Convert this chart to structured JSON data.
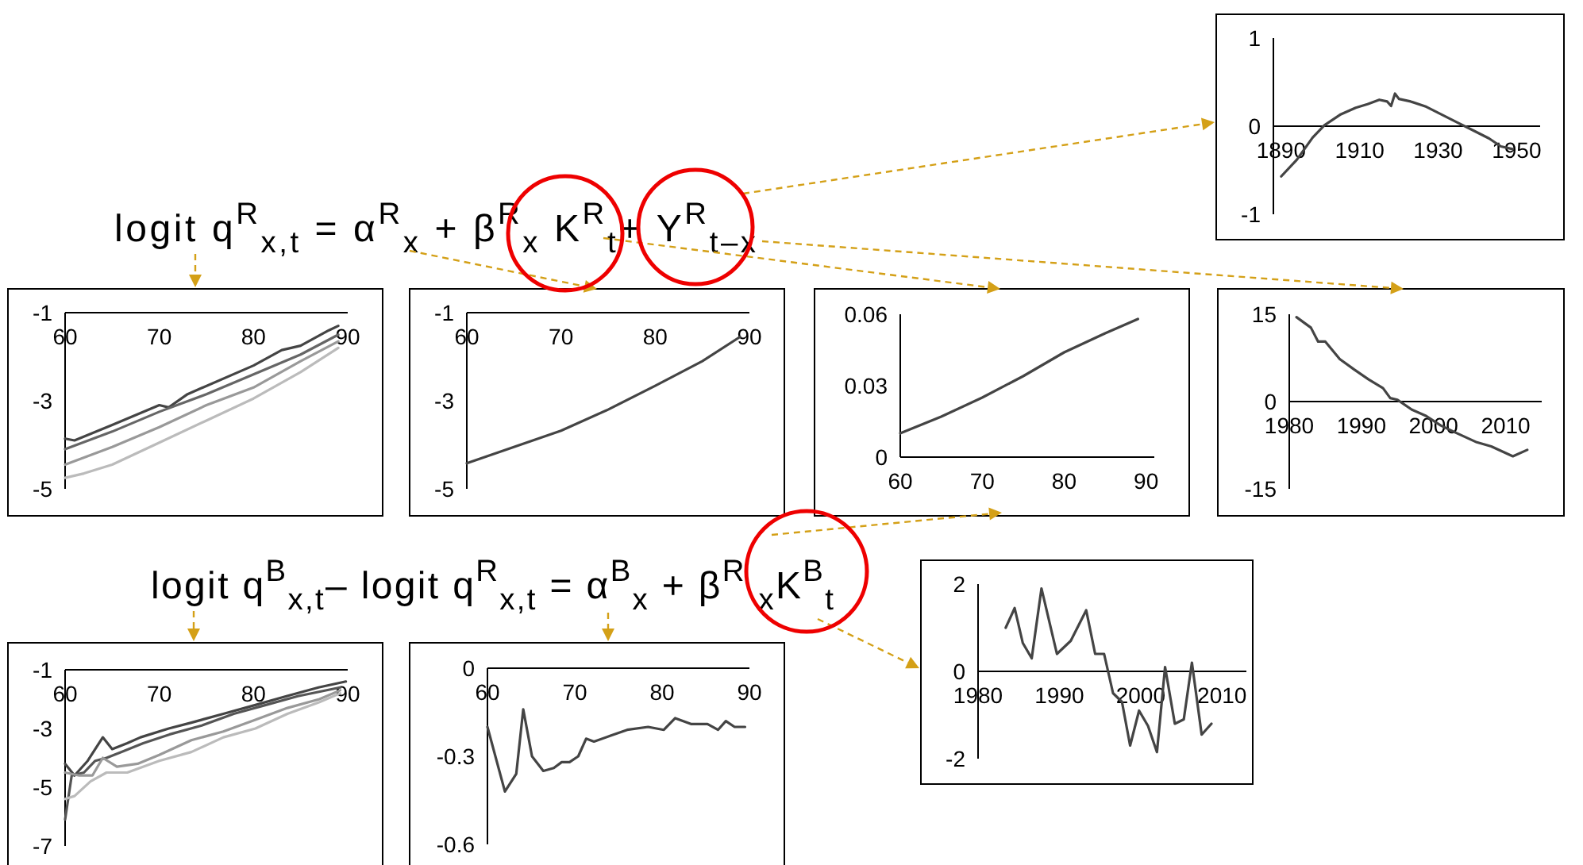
{
  "chart_data": [
    {
      "type": "line",
      "xlim": [
        1888,
        1956
      ],
      "ylim": [
        -1,
        1
      ],
      "xticks": [
        1890,
        1910,
        1930,
        1950
      ],
      "yticks": [
        1,
        0,
        -1
      ],
      "grid": false,
      "series": [
        {
          "color": "#444444",
          "x": [
            1890,
            1894,
            1898,
            1901,
            1905,
            1909,
            1912,
            1915,
            1917,
            1918,
            1919,
            1920,
            1923,
            1927,
            1931,
            1935,
            1939,
            1943,
            1946,
            1949
          ],
          "values": [
            -0.57,
            -0.38,
            -0.13,
            0.01,
            0.13,
            0.21,
            0.25,
            0.3,
            0.28,
            0.23,
            0.37,
            0.31,
            0.28,
            0.22,
            0.13,
            0.04,
            -0.05,
            -0.14,
            -0.23,
            -0.26
          ]
        }
      ]
    },
    {
      "type": "other",
      "annotations": [
        "logit q$^{R}$$_{x,t}$ = α$^{R}$$_{x}$ + β$^{R}$$_{x}$ K$^{R}$$_{t}$+ Y$^{R}$$_{t–x}$"
      ]
    },
    {
      "type": "line",
      "xlim": [
        60,
        90
      ],
      "ylim": [
        -5,
        -1
      ],
      "xticks": [
        60,
        70,
        80,
        90
      ],
      "yticks": [
        -1,
        -3,
        -5
      ],
      "grid": false,
      "series": [
        {
          "color": "#444444",
          "x": [
            60,
            61,
            65,
            70,
            71,
            73,
            80,
            83,
            85,
            88,
            89
          ],
          "values": [
            -3.86,
            -3.9,
            -3.55,
            -3.1,
            -3.15,
            -2.85,
            -2.2,
            -1.85,
            -1.75,
            -1.4,
            -1.3
          ]
        },
        {
          "color": "#666666",
          "x": [
            60,
            65,
            70,
            75,
            80,
            85,
            89
          ],
          "values": [
            -4.1,
            -3.7,
            -3.25,
            -2.85,
            -2.4,
            -1.95,
            -1.5
          ]
        },
        {
          "color": "#999999",
          "x": [
            60,
            65,
            70,
            75,
            80,
            85,
            89
          ],
          "values": [
            -4.45,
            -4.05,
            -3.6,
            -3.1,
            -2.7,
            -2.1,
            -1.65
          ]
        },
        {
          "color": "#bbbbbb",
          "x": [
            60,
            62,
            65,
            70,
            75,
            80,
            85,
            89
          ],
          "values": [
            -4.75,
            -4.65,
            -4.45,
            -3.95,
            -3.45,
            -2.95,
            -2.35,
            -1.8
          ]
        }
      ]
    },
    {
      "type": "line",
      "xlim": [
        60,
        90
      ],
      "ylim": [
        -5,
        -1
      ],
      "xticks": [
        60,
        70,
        80,
        90
      ],
      "yticks": [
        -1,
        -3,
        -5
      ],
      "grid": false,
      "series": [
        {
          "color": "#444444",
          "x": [
            60,
            65,
            70,
            75,
            80,
            85,
            89
          ],
          "values": [
            -4.42,
            -4.05,
            -3.68,
            -3.2,
            -2.66,
            -2.1,
            -1.55
          ]
        }
      ]
    },
    {
      "type": "line",
      "xlim": [
        60,
        91
      ],
      "ylim": [
        0,
        0.06
      ],
      "xticks": [
        60,
        70,
        80,
        90
      ],
      "yticks": [
        0.06,
        0.03,
        0
      ],
      "grid": false,
      "series": [
        {
          "color": "#444444",
          "x": [
            60,
            65,
            70,
            75,
            80,
            85,
            89
          ],
          "values": [
            0.01,
            0.017,
            0.025,
            0.034,
            0.044,
            0.052,
            0.058
          ]
        }
      ]
    },
    {
      "type": "line",
      "xlim": [
        1980,
        2015
      ],
      "ylim": [
        -15,
        15
      ],
      "xticks": [
        1980,
        1990,
        2000,
        2010
      ],
      "yticks": [
        15,
        0,
        -15
      ],
      "grid": false,
      "series": [
        {
          "color": "#444444",
          "x": [
            1981,
            1983,
            1984,
            1985,
            1987,
            1989,
            1991,
            1993,
            1994,
            1995,
            1997,
            1999,
            2001,
            2003,
            2006,
            2008,
            2011,
            2013
          ],
          "values": [
            14.5,
            12.7,
            10.3,
            10.3,
            7.3,
            5.5,
            3.8,
            2.3,
            0.6,
            0.3,
            -1.4,
            -2.5,
            -4.1,
            -5.3,
            -7,
            -7.7,
            -9.4,
            -8.3
          ]
        }
      ]
    },
    {
      "type": "other",
      "annotations": [
        "logit q$^{B}$$_{x,t}$– logit q$^{R}$$_{x,t}$ = α$^{B}$$_{x}$ + β$^{R}$ $_{x}$K$^{B}$$_{t}$"
      ]
    },
    {
      "type": "line",
      "xlim": [
        60,
        90
      ],
      "ylim": [
        -7,
        -1
      ],
      "xticks": [
        60,
        70,
        80,
        90
      ],
      "yticks": [
        -1,
        -3,
        -5,
        -7
      ],
      "grid": false,
      "series": [
        {
          "color": "#444444",
          "x": [
            60,
            61,
            62.4,
            64,
            65,
            66.6,
            68,
            71,
            73.4,
            76.8,
            80.2,
            83.5,
            86.9,
            89.8
          ],
          "values": [
            -4.2,
            -4.6,
            -4.1,
            -3.3,
            -3.7,
            -3.5,
            -3.3,
            -3,
            -2.8,
            -2.5,
            -2.2,
            -1.9,
            -1.6,
            -1.4
          ]
        },
        {
          "color": "#555555",
          "x": [
            60,
            60.7,
            62,
            63.2,
            64.4,
            66,
            68.3,
            71.1,
            74.5,
            77.9,
            81.3,
            84.7,
            89.2
          ],
          "values": [
            -6.1,
            -4.6,
            -4.5,
            -4.1,
            -4,
            -3.8,
            -3.5,
            -3.2,
            -2.9,
            -2.5,
            -2.2,
            -1.9,
            -1.6
          ]
        },
        {
          "color": "#999999",
          "x": [
            60,
            61.5,
            62.9,
            64,
            65.5,
            67.7,
            70,
            73.4,
            76.8,
            80.2,
            83.6,
            87,
            89.2
          ],
          "values": [
            -4.5,
            -4.6,
            -4.6,
            -4,
            -4.3,
            -4.2,
            -3.9,
            -3.4,
            -3.1,
            -2.7,
            -2.3,
            -2,
            -1.7
          ]
        },
        {
          "color": "#bbbbbb",
          "x": [
            60,
            61,
            62.7,
            64.4,
            66.6,
            70,
            73.4,
            76.8,
            80.2,
            83.6,
            87,
            89.2
          ],
          "values": [
            -5.4,
            -5.3,
            -4.8,
            -4.5,
            -4.5,
            -4.1,
            -3.8,
            -3.3,
            -3,
            -2.5,
            -2.1,
            -1.8
          ]
        }
      ]
    },
    {
      "type": "line",
      "xlim": [
        60,
        90
      ],
      "ylim": [
        -0.6,
        0
      ],
      "xticks": [
        60,
        70,
        80,
        90
      ],
      "yticks": [
        0,
        -0.3,
        -0.6
      ],
      "grid": false,
      "series": [
        {
          "color": "#444444",
          "x": [
            60,
            62,
            63.3,
            64.1,
            65.1,
            66.4,
            67.6,
            68.5,
            69.4,
            70.4,
            71.3,
            72.2,
            74.1,
            76,
            78.4,
            80.2,
            81.5,
            83.3,
            85.2,
            86.4,
            87.3,
            88.3,
            89.5
          ],
          "values": [
            -0.2,
            -0.42,
            -0.36,
            -0.14,
            -0.3,
            -0.35,
            -0.34,
            -0.32,
            -0.32,
            -0.3,
            -0.24,
            -0.25,
            -0.23,
            -0.21,
            -0.2,
            -0.21,
            -0.17,
            -0.19,
            -0.19,
            -0.21,
            -0.18,
            -0.2,
            -0.2
          ]
        }
      ]
    },
    {
      "type": "line",
      "xlim": [
        1980,
        2013
      ],
      "ylim": [
        -2,
        2
      ],
      "xticks": [
        1980,
        1990,
        2000,
        2010
      ],
      "yticks": [
        2,
        0,
        -2
      ],
      "grid": false,
      "series": [
        {
          "color": "#444444",
          "x": [
            1983.4,
            1984.5,
            1985.5,
            1986.6,
            1987.8,
            1989.7,
            1991.4,
            1993.3,
            1994.4,
            1995.5,
            1996.6,
            1997.7,
            1998.7,
            1999.8,
            2000.9,
            2002,
            2003,
            2004.2,
            2005.3,
            2006.3,
            2007.5,
            2008.7
          ],
          "values": [
            1,
            1.45,
            0.65,
            0.3,
            1.9,
            0.4,
            0.7,
            1.4,
            0.4,
            0.4,
            -0.5,
            -0.7,
            -1.7,
            -0.9,
            -1.25,
            -1.85,
            0.1,
            -1.2,
            -1.1,
            0.2,
            -1.45,
            -1.2
          ]
        }
      ]
    }
  ]
}
